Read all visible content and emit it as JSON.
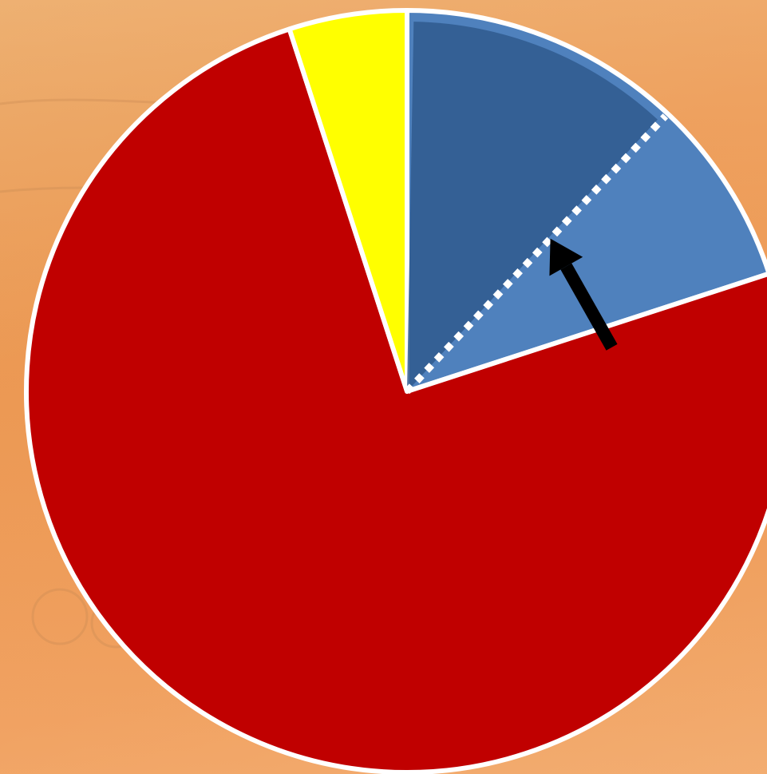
{
  "chart_data": {
    "type": "pie",
    "start_angle_deg": 0,
    "direction": "clockwise",
    "slices": [
      {
        "value": 20,
        "color": "#4f81bd"
      },
      {
        "value": 75,
        "color": "#c00000"
      },
      {
        "value": 5,
        "color": "#ffff00"
      }
    ],
    "highlighted_sub_segment": {
      "value": 12,
      "color": "#2f5a8e",
      "within_slice": 0
    },
    "divider": {
      "at_value": 12,
      "style": "dotted",
      "color": "#ffffff"
    },
    "annotation": {
      "type": "arrow",
      "color": "#000000",
      "points_to": "divider"
    },
    "outline_color": "#ffffff"
  },
  "background": {
    "description_icon": "desert-landscape-icon",
    "colors": [
      "#e9a865",
      "#f09d5a"
    ]
  }
}
